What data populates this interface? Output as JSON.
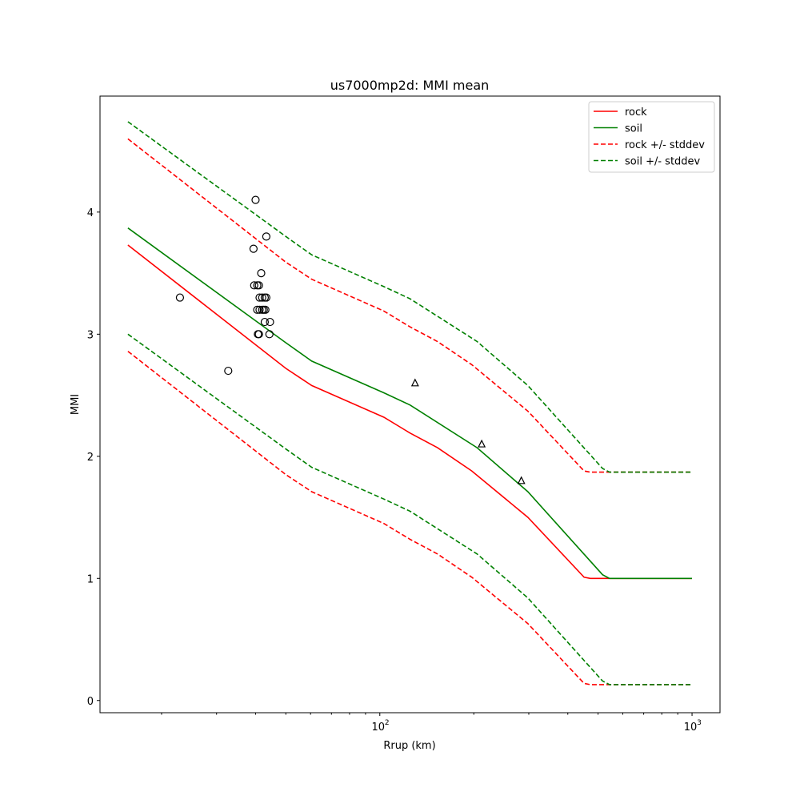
{
  "chart_data": {
    "type": "line",
    "title": "us7000mp2d: MMI mean",
    "xlabel": "Rrup (km)",
    "ylabel": "MMI",
    "xscale": "log",
    "xlim": [
      12.7,
      1229
    ],
    "ylim": [
      -0.1,
      4.95
    ],
    "xticks": [
      {
        "value": 100,
        "base": "10",
        "exp": "2"
      },
      {
        "value": 1000,
        "base": "10",
        "exp": "3"
      }
    ],
    "yticks": [
      0,
      1,
      2,
      3,
      4
    ],
    "legend_placement": "top-right",
    "series": [
      {
        "name": "rock",
        "color": "#ff0000",
        "dash": false,
        "x": [
          15.6,
          50,
          60.5,
          103,
          125,
          153,
          197,
          298,
          451,
          472,
          1000
        ],
        "y": [
          3.73,
          2.72,
          2.58,
          2.32,
          2.19,
          2.07,
          1.88,
          1.5,
          1.01,
          1.0,
          1.0
        ]
      },
      {
        "name": "soil",
        "color": "#008000",
        "dash": false,
        "x": [
          15.6,
          50,
          60.5,
          103,
          125,
          205,
          298,
          517,
          544,
          1000
        ],
        "y": [
          3.87,
          2.93,
          2.78,
          2.52,
          2.42,
          2.07,
          1.71,
          1.03,
          1.0,
          1.0
        ]
      },
      {
        "name": "rock +/- stddev",
        "color": "#ff0000",
        "dash": true,
        "x": [
          15.6,
          50,
          60.5,
          103,
          125,
          153,
          197,
          298,
          451,
          472,
          1000
        ],
        "y": [
          4.6,
          3.59,
          3.45,
          3.19,
          3.06,
          2.94,
          2.75,
          2.37,
          1.88,
          1.87,
          1.87
        ],
        "y_lower": [
          2.86,
          1.85,
          1.71,
          1.45,
          1.32,
          1.2,
          1.01,
          0.63,
          0.14,
          0.13,
          0.13
        ]
      },
      {
        "name": "soil +/- stddev",
        "color": "#008000",
        "dash": true,
        "x": [
          15.6,
          50,
          60.5,
          103,
          125,
          205,
          298,
          517,
          544,
          1000
        ],
        "y": [
          4.74,
          3.8,
          3.65,
          3.39,
          3.29,
          2.94,
          2.58,
          1.9,
          1.87,
          1.87
        ],
        "y_lower": [
          3.0,
          2.06,
          1.91,
          1.65,
          1.55,
          1.2,
          0.84,
          0.16,
          0.13,
          0.13
        ]
      }
    ],
    "observations": {
      "circles": [
        [
          22.9,
          3.3
        ],
        [
          32.7,
          2.7
        ],
        [
          40.0,
          4.1
        ],
        [
          43.3,
          3.8
        ],
        [
          39.4,
          3.7
        ],
        [
          41.7,
          3.5
        ],
        [
          39.6,
          3.4
        ],
        [
          40.5,
          3.4
        ],
        [
          41.0,
          3.4
        ],
        [
          41.2,
          3.3
        ],
        [
          42.0,
          3.3
        ],
        [
          42.8,
          3.3
        ],
        [
          43.3,
          3.3
        ],
        [
          40.5,
          3.2
        ],
        [
          41.2,
          3.2
        ],
        [
          42.0,
          3.2
        ],
        [
          42.5,
          3.2
        ],
        [
          43.0,
          3.2
        ],
        [
          42.8,
          3.1
        ],
        [
          44.5,
          3.1
        ],
        [
          40.7,
          3.0
        ],
        [
          41.0,
          3.0
        ],
        [
          44.3,
          3.0
        ]
      ],
      "triangles": [
        [
          129.7,
          2.6
        ],
        [
          212,
          2.1
        ],
        [
          284,
          1.8
        ]
      ]
    }
  }
}
